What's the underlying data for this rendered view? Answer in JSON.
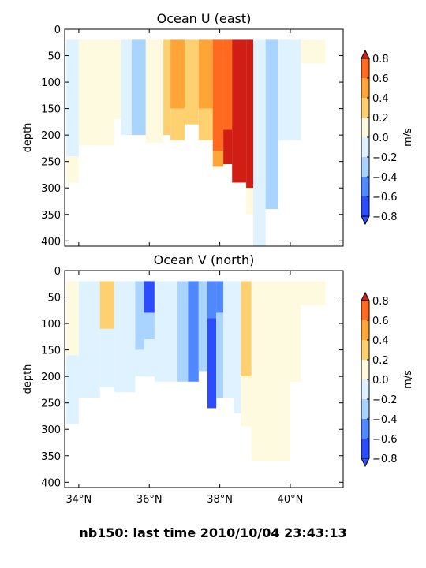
{
  "suptitle": "nb150: last time 2010/10/04 23:43:13",
  "colors": {
    "-0.8": "#2b4cff",
    "-0.6": "#4f88ff",
    "-0.4": "#a8d4ff",
    "-0.2": "#dff2ff",
    "0.0": "#fefae0",
    "0.2": "#ffd070",
    "0.4": "#ffa436",
    "0.6": "#ff6a1e",
    "0.8": "#d11e14"
  },
  "chart_data": [
    {
      "type": "heatmap",
      "title": "Ocean U (east)",
      "ylabel": "depth",
      "xlabel": "",
      "x_ticks": [
        "34°N",
        "36°N",
        "38°N",
        "40°N"
      ],
      "x_tick_values": [
        34,
        36,
        38,
        40
      ],
      "xlim": [
        33.6,
        41.5
      ],
      "y_ticks": [
        "0",
        "50",
        "100",
        "150",
        "200",
        "250",
        "300",
        "350",
        "400"
      ],
      "y_tick_values": [
        0,
        50,
        100,
        150,
        200,
        250,
        300,
        350,
        400
      ],
      "ylim": [
        410,
        0
      ],
      "y_inverted": true,
      "colorbar": {
        "label": "m/s",
        "ticks": [
          "0.8",
          "0.6",
          "0.4",
          "0.2",
          "0.0",
          "−0.2",
          "−0.4",
          "−0.6",
          "−0.8"
        ],
        "levels": [
          -0.8,
          -0.6,
          -0.4,
          -0.2,
          0.0,
          0.2,
          0.4,
          0.6,
          0.8
        ],
        "extend": "both"
      },
      "columns": [
        {
          "lat_from": 33.65,
          "lat_to": 34.0,
          "segments": [
            [
              20,
              240,
              -0.2
            ],
            [
              240,
              290,
              0.0
            ]
          ]
        },
        {
          "lat_from": 34.0,
          "lat_to": 35.0,
          "segments": [
            [
              20,
              220,
              0.0
            ]
          ]
        },
        {
          "lat_from": 35.0,
          "lat_to": 35.2,
          "segments": [
            [
              20,
              170,
              0.0
            ]
          ]
        },
        {
          "lat_from": 35.2,
          "lat_to": 35.5,
          "segments": [
            [
              20,
              200,
              -0.2
            ]
          ]
        },
        {
          "lat_from": 35.5,
          "lat_to": 35.9,
          "segments": [
            [
              20,
              200,
              -0.4
            ]
          ]
        },
        {
          "lat_from": 35.9,
          "lat_to": 36.4,
          "segments": [
            [
              20,
              215,
              0.0
            ]
          ]
        },
        {
          "lat_from": 36.4,
          "lat_to": 36.6,
          "segments": [
            [
              20,
              200,
              0.2
            ]
          ]
        },
        {
          "lat_from": 36.6,
          "lat_to": 37.0,
          "segments": [
            [
              20,
              150,
              0.4
            ],
            [
              150,
              210,
              0.2
            ]
          ]
        },
        {
          "lat_from": 37.0,
          "lat_to": 37.4,
          "segments": [
            [
              20,
              180,
              0.2
            ]
          ]
        },
        {
          "lat_from": 37.4,
          "lat_to": 37.8,
          "segments": [
            [
              20,
              150,
              0.4
            ],
            [
              150,
              210,
              0.2
            ]
          ]
        },
        {
          "lat_from": 37.8,
          "lat_to": 38.1,
          "segments": [
            [
              20,
              230,
              0.6
            ],
            [
              230,
              260,
              0.4
            ]
          ]
        },
        {
          "lat_from": 38.1,
          "lat_to": 38.35,
          "segments": [
            [
              20,
              190,
              0.6
            ],
            [
              190,
              255,
              0.8
            ]
          ]
        },
        {
          "lat_from": 38.35,
          "lat_to": 38.75,
          "segments": [
            [
              20,
              290,
              0.8
            ]
          ]
        },
        {
          "lat_from": 38.75,
          "lat_to": 38.95,
          "segments": [
            [
              20,
              300,
              0.8
            ],
            [
              300,
              350,
              0.0
            ]
          ]
        },
        {
          "lat_from": 38.95,
          "lat_to": 39.3,
          "segments": [
            [
              20,
              410,
              -0.2
            ]
          ]
        },
        {
          "lat_from": 39.3,
          "lat_to": 39.65,
          "segments": [
            [
              20,
              340,
              -0.4
            ]
          ]
        },
        {
          "lat_from": 39.65,
          "lat_to": 40.3,
          "segments": [
            [
              20,
              210,
              -0.2
            ]
          ]
        },
        {
          "lat_from": 40.3,
          "lat_to": 41.0,
          "segments": [
            [
              20,
              65,
              0.0
            ]
          ]
        }
      ]
    },
    {
      "type": "heatmap",
      "title": "Ocean V (north)",
      "ylabel": "depth",
      "xlabel": "",
      "x_ticks": [
        "34°N",
        "36°N",
        "38°N",
        "40°N"
      ],
      "x_tick_values": [
        34,
        36,
        38,
        40
      ],
      "xlim": [
        33.6,
        41.5
      ],
      "y_ticks": [
        "0",
        "50",
        "100",
        "150",
        "200",
        "250",
        "300",
        "350",
        "400"
      ],
      "y_tick_values": [
        0,
        50,
        100,
        150,
        200,
        250,
        300,
        350,
        400
      ],
      "ylim": [
        410,
        0
      ],
      "y_inverted": true,
      "colorbar": {
        "label": "m/s",
        "ticks": [
          "0.8",
          "0.6",
          "0.4",
          "0.2",
          "0.0",
          "−0.2",
          "−0.4",
          "−0.6",
          "−0.8"
        ],
        "levels": [
          -0.8,
          -0.6,
          -0.4,
          -0.2,
          0.0,
          0.2,
          0.4,
          0.6,
          0.8
        ],
        "extend": "both"
      },
      "columns": [
        {
          "lat_from": 33.65,
          "lat_to": 34.0,
          "segments": [
            [
              20,
              160,
              0.0
            ],
            [
              160,
              290,
              -0.2
            ]
          ]
        },
        {
          "lat_from": 34.0,
          "lat_to": 34.6,
          "segments": [
            [
              20,
              240,
              -0.2
            ]
          ]
        },
        {
          "lat_from": 34.6,
          "lat_to": 35.0,
          "segments": [
            [
              20,
              110,
              0.2
            ],
            [
              110,
              220,
              -0.2
            ]
          ]
        },
        {
          "lat_from": 35.0,
          "lat_to": 35.6,
          "segments": [
            [
              20,
              230,
              -0.2
            ]
          ]
        },
        {
          "lat_from": 35.6,
          "lat_to": 35.85,
          "segments": [
            [
              20,
              150,
              -0.4
            ],
            [
              150,
              200,
              -0.2
            ]
          ]
        },
        {
          "lat_from": 35.85,
          "lat_to": 36.15,
          "segments": [
            [
              20,
              80,
              -0.8
            ],
            [
              80,
              130,
              -0.4
            ],
            [
              130,
              200,
              -0.2
            ]
          ]
        },
        {
          "lat_from": 36.15,
          "lat_to": 36.8,
          "segments": [
            [
              20,
              210,
              -0.2
            ]
          ]
        },
        {
          "lat_from": 36.8,
          "lat_to": 37.1,
          "segments": [
            [
              20,
              210,
              -0.4
            ]
          ]
        },
        {
          "lat_from": 37.1,
          "lat_to": 37.4,
          "segments": [
            [
              20,
              210,
              -0.6
            ]
          ]
        },
        {
          "lat_from": 37.4,
          "lat_to": 37.65,
          "segments": [
            [
              20,
              190,
              -0.4
            ]
          ]
        },
        {
          "lat_from": 37.65,
          "lat_to": 37.9,
          "segments": [
            [
              20,
              90,
              -0.6
            ],
            [
              90,
              260,
              -0.8
            ]
          ]
        },
        {
          "lat_from": 37.9,
          "lat_to": 38.1,
          "segments": [
            [
              20,
              80,
              -0.6
            ],
            [
              80,
              240,
              -0.4
            ]
          ]
        },
        {
          "lat_from": 38.1,
          "lat_to": 38.4,
          "segments": [
            [
              20,
              240,
              -0.2
            ]
          ]
        },
        {
          "lat_from": 38.4,
          "lat_to": 38.6,
          "segments": [
            [
              20,
              270,
              -0.2
            ]
          ]
        },
        {
          "lat_from": 38.6,
          "lat_to": 38.9,
          "segments": [
            [
              20,
              200,
              0.2
            ],
            [
              200,
              295,
              0.0
            ]
          ]
        },
        {
          "lat_from": 38.9,
          "lat_to": 40.0,
          "segments": [
            [
              20,
              360,
              0.0
            ]
          ]
        },
        {
          "lat_from": 40.0,
          "lat_to": 40.3,
          "segments": [
            [
              20,
              210,
              0.0
            ]
          ]
        },
        {
          "lat_from": 40.3,
          "lat_to": 41.0,
          "segments": [
            [
              20,
              65,
              0.0
            ]
          ]
        }
      ]
    }
  ]
}
